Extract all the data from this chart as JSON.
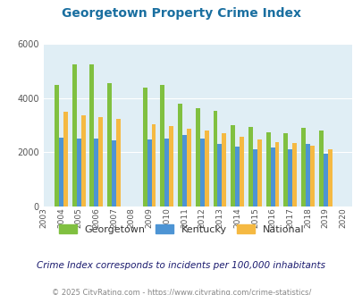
{
  "title": "Georgetown Property Crime Index",
  "years": [
    2003,
    2004,
    2005,
    2006,
    2007,
    2008,
    2009,
    2010,
    2011,
    2012,
    2013,
    2014,
    2015,
    2016,
    2017,
    2018,
    2019,
    2020
  ],
  "georgetown": [
    null,
    4500,
    5250,
    5250,
    4550,
    null,
    4400,
    4500,
    3800,
    3650,
    3550,
    3000,
    2950,
    2750,
    2700,
    2900,
    2800,
    null
  ],
  "kentucky": [
    null,
    2550,
    2500,
    2500,
    2450,
    null,
    2480,
    2520,
    2650,
    2520,
    2300,
    2200,
    2130,
    2180,
    2100,
    2300,
    1940,
    null
  ],
  "national": [
    null,
    3500,
    3380,
    3290,
    3250,
    null,
    3040,
    2960,
    2870,
    2820,
    2700,
    2580,
    2480,
    2390,
    2360,
    2260,
    2130,
    null
  ],
  "georgetown_color": "#80c040",
  "kentucky_color": "#4d94d4",
  "national_color": "#f5b942",
  "bg_color": "#e0eef5",
  "ylim": [
    0,
    6000
  ],
  "yticks": [
    0,
    2000,
    4000,
    6000
  ],
  "subtitle": "Crime Index corresponds to incidents per 100,000 inhabitants",
  "footer": "© 2025 CityRating.com - https://www.cityrating.com/crime-statistics/",
  "bar_width": 0.25,
  "title_color": "#1a6fa0",
  "subtitle_color": "#1a1a6e",
  "footer_color": "#888888"
}
